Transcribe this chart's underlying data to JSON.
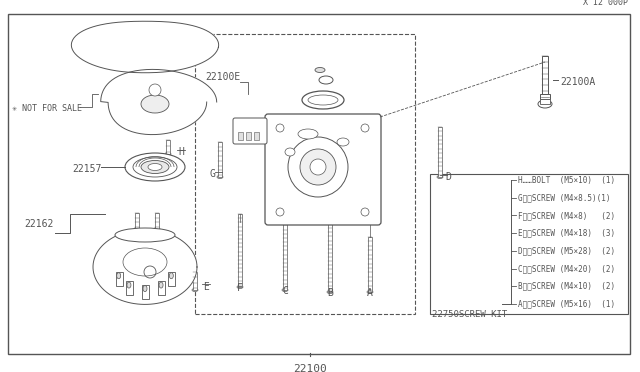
{
  "bg_color": "#ffffff",
  "line_color": "#555555",
  "text_color": "#555555",
  "fig_width": 6.4,
  "fig_height": 3.72,
  "dpi": 100,
  "title": "22100",
  "part_number_bottom": "X I2 000P",
  "screw_items": [
    "A‥‥SCREW (M5×16)  (1)",
    "B‥‥SCREW (M4×10)  (2)",
    "C‥‥SCREW (M4×20)  (2)",
    "D‥‥SCREW (M5×28)  (2)",
    "E‥‥SCREW (M4×18)  (3)",
    "F‥‥SCREW (M4×8)   (2)",
    "G‥‥SCREW (M4×8.5)(1)",
    "H……BOLT  (M5×10)  (1)"
  ]
}
